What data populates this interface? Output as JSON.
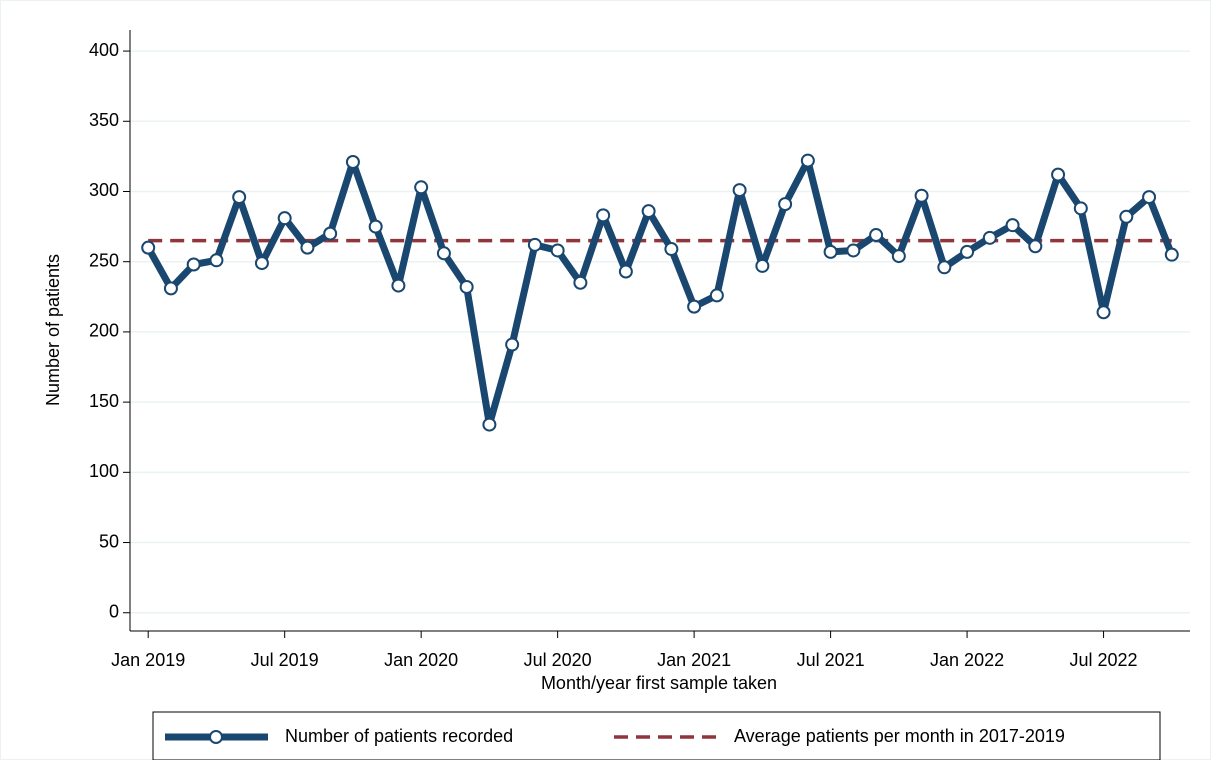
{
  "chart_data": {
    "type": "line",
    "y_label": "Number of patients",
    "x_label": "Month/year first sample taken",
    "categories": [
      "Jan 2019",
      null,
      null,
      null,
      null,
      null,
      "Jul 2019",
      null,
      null,
      null,
      null,
      null,
      "Jan 2020",
      null,
      null,
      null,
      null,
      null,
      "Jul 2020",
      null,
      null,
      null,
      null,
      null,
      "Jan 2021",
      null,
      null,
      null,
      null,
      null,
      "Jul 2021",
      null,
      null,
      null,
      null,
      null,
      "Jan 2022",
      null,
      null,
      null,
      null,
      null,
      "Jul 2022",
      null,
      null,
      null
    ],
    "series": [
      {
        "name": "Number of patients recorded",
        "color": "#1a476f",
        "values": [
          260,
          231,
          248,
          251,
          296,
          249,
          281,
          260,
          270,
          321,
          275,
          233,
          303,
          256,
          232,
          134,
          191,
          262,
          258,
          235,
          283,
          243,
          286,
          259,
          218,
          226,
          301,
          247,
          291,
          322,
          257,
          258,
          269,
          254,
          297,
          246,
          257,
          267,
          276,
          261,
          312,
          288,
          214,
          282,
          296,
          255
        ]
      }
    ],
    "reference_line": {
      "name": "Average patients per month in 2017-2019",
      "color": "#90353b",
      "value": 265
    },
    "ylim": [
      -13,
      415
    ],
    "yticks": [
      0,
      50,
      100,
      150,
      200,
      250,
      300,
      350,
      400
    ],
    "grid": true
  }
}
